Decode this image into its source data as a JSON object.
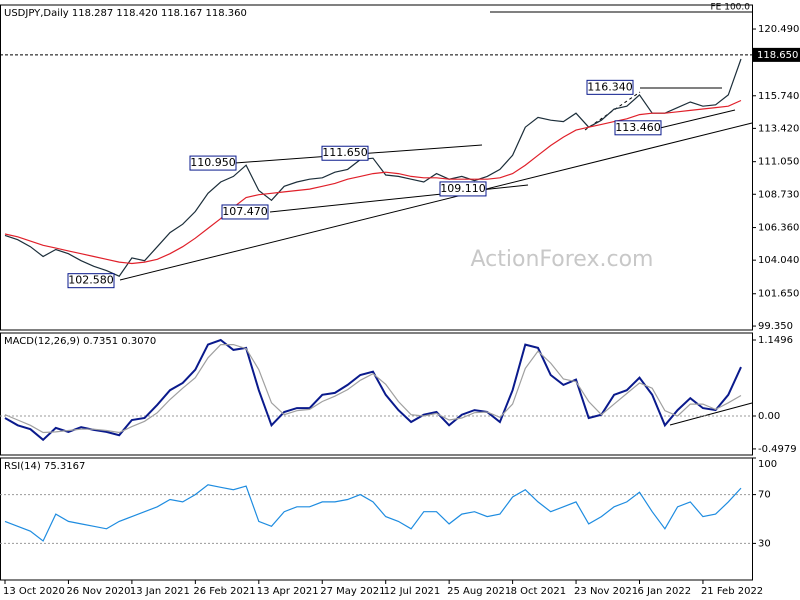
{
  "chart_data": [
    {
      "type": "line",
      "title": "USDJPY,Daily  118.287 118.420 118.167 118.360",
      "ylim": [
        99.07,
        122.2
      ],
      "yticks": [
        {
          "value": 120.49,
          "label": "120.490"
        },
        {
          "value": 115.74,
          "label": "115.740"
        },
        {
          "value": 113.42,
          "label": "113.420"
        },
        {
          "value": 111.05,
          "label": "111.050"
        },
        {
          "value": 108.73,
          "label": "108.730"
        },
        {
          "value": 106.36,
          "label": "106.360"
        },
        {
          "value": 104.04,
          "label": "104.040"
        },
        {
          "value": 101.65,
          "label": "101.650"
        },
        {
          "value": 99.35,
          "label": "99.350"
        }
      ],
      "series": [
        {
          "color": "#1c2e3a",
          "values": [
            105.8,
            105.5,
            105.0,
            104.3,
            104.8,
            104.5,
            104.0,
            103.6,
            103.3,
            102.9,
            104.2,
            104.0,
            105.0,
            106.0,
            106.6,
            107.5,
            108.8,
            109.6,
            110.0,
            110.8,
            109.0,
            108.3,
            109.3,
            109.6,
            109.8,
            109.9,
            110.3,
            110.5,
            111.2,
            111.3,
            110.1,
            110.0,
            109.8,
            109.6,
            110.2,
            109.8,
            110.0,
            109.7,
            110.0,
            110.5,
            111.5,
            113.5,
            114.2,
            114.0,
            113.9,
            114.5,
            113.5,
            114.0,
            114.8,
            115.0,
            115.8,
            114.5,
            114.5,
            114.9,
            115.3,
            115.0,
            115.1,
            115.8,
            118.36
          ]
        },
        {
          "color": "#e0202a",
          "values": [
            105.9,
            105.7,
            105.4,
            105.1,
            104.9,
            104.7,
            104.5,
            104.3,
            104.1,
            103.9,
            103.8,
            103.9,
            104.1,
            104.5,
            105.0,
            105.6,
            106.3,
            107.0,
            107.8,
            108.5,
            108.7,
            108.8,
            108.9,
            109.0,
            109.1,
            109.3,
            109.5,
            109.8,
            110.0,
            110.2,
            110.3,
            110.2,
            110.0,
            109.9,
            109.9,
            109.8,
            109.8,
            109.8,
            109.8,
            109.9,
            110.2,
            110.8,
            111.5,
            112.2,
            112.8,
            113.3,
            113.5,
            113.7,
            113.9,
            114.1,
            114.4,
            114.5,
            114.5,
            114.6,
            114.7,
            114.8,
            114.9,
            115.0,
            115.4
          ]
        }
      ],
      "annotations": [
        {
          "value": 110.95,
          "label": "110.950"
        },
        {
          "value": 111.65,
          "label": "111.650"
        },
        {
          "value": 107.47,
          "label": "107.470"
        },
        {
          "value": 102.58,
          "label": "102.580"
        },
        {
          "value": 109.11,
          "label": "109.110"
        },
        {
          "value": 116.34,
          "label": "116.340"
        },
        {
          "value": 113.46,
          "label": "113.460"
        }
      ],
      "price_marker": {
        "value": 118.65,
        "label": "118.650"
      },
      "fe_label": "FE 100.0",
      "watermark": "ActionForex.com"
    },
    {
      "type": "line",
      "title": "MACD(12,26,9) 0.7351 0.3070",
      "ylim": [
        -0.59,
        1.2557
      ],
      "yticks": [
        1.1496,
        {
          "value": 0,
          "label": "0.00"
        },
        -0.4979
      ],
      "level_lines": [
        0
      ],
      "series": [
        {
          "color": "#0a1a8c",
          "values": [
            -0.03,
            -0.14,
            -0.2,
            -0.36,
            -0.18,
            -0.24,
            -0.17,
            -0.21,
            -0.24,
            -0.29,
            -0.06,
            -0.03,
            0.17,
            0.39,
            0.5,
            0.7,
            1.08,
            1.15,
            1.0,
            1.03,
            0.39,
            -0.14,
            0.06,
            0.12,
            0.12,
            0.32,
            0.35,
            0.47,
            0.62,
            0.67,
            0.32,
            0.09,
            -0.09,
            0.02,
            0.06,
            -0.14,
            0.02,
            0.09,
            0.06,
            -0.09,
            0.39,
            1.08,
            1.03,
            0.62,
            0.47,
            0.55,
            -0.03,
            0.02,
            0.32,
            0.39,
            0.58,
            0.32,
            -0.14,
            0.09,
            0.27,
            0.12,
            0.09,
            0.32,
            0.74
          ]
        },
        {
          "color": "#a0a0a0",
          "values": [
            0.02,
            -0.06,
            -0.14,
            -0.25,
            -0.24,
            -0.22,
            -0.2,
            -0.2,
            -0.22,
            -0.25,
            -0.16,
            -0.08,
            0.05,
            0.25,
            0.42,
            0.58,
            0.88,
            1.08,
            1.08,
            1.02,
            0.7,
            0.2,
            0.02,
            0.08,
            0.1,
            0.22,
            0.3,
            0.4,
            0.54,
            0.64,
            0.48,
            0.22,
            0.02,
            0.0,
            0.04,
            -0.06,
            -0.03,
            0.05,
            0.06,
            -0.02,
            0.18,
            0.72,
            0.98,
            0.8,
            0.56,
            0.52,
            0.22,
            0.02,
            0.18,
            0.34,
            0.5,
            0.42,
            0.08,
            0.0,
            0.18,
            0.18,
            0.1,
            0.2,
            0.31
          ]
        }
      ]
    },
    {
      "type": "line",
      "title": "RSI(14) 75.3167",
      "ylim": [
        0,
        100
      ],
      "yticks": [
        100,
        70,
        30
      ],
      "level_lines": [
        70,
        30
      ],
      "categories": [
        "13 Oct 2020",
        null,
        null,
        null,
        null,
        "26 Nov 2020",
        null,
        null,
        null,
        null,
        "13 Jan 2021",
        null,
        null,
        null,
        null,
        "26 Feb 2021",
        null,
        null,
        null,
        null,
        "13 Apr 2021",
        null,
        null,
        null,
        null,
        "27 May 2021",
        null,
        null,
        null,
        null,
        "12 Jul 2021",
        null,
        null,
        null,
        null,
        "25 Aug 2021",
        null,
        null,
        null,
        null,
        "8 Oct 2021",
        null,
        null,
        null,
        null,
        "23 Nov 2021",
        null,
        null,
        null,
        null,
        "6 Jan 2022",
        null,
        null,
        null,
        null,
        "21 Feb 2022",
        null,
        null,
        null
      ],
      "series": [
        {
          "color": "#1e8ce0",
          "values": [
            48,
            44,
            40,
            32,
            54,
            48,
            46,
            44,
            42,
            48,
            52,
            56,
            60,
            66,
            64,
            70,
            78,
            76,
            74,
            77,
            48,
            44,
            56,
            60,
            60,
            64,
            64,
            66,
            70,
            64,
            52,
            48,
            42,
            56,
            56,
            46,
            54,
            56,
            52,
            54,
            68,
            74,
            64,
            56,
            60,
            64,
            46,
            52,
            60,
            64,
            72,
            56,
            42,
            60,
            64,
            52,
            54,
            64,
            75.3
          ]
        }
      ]
    }
  ]
}
